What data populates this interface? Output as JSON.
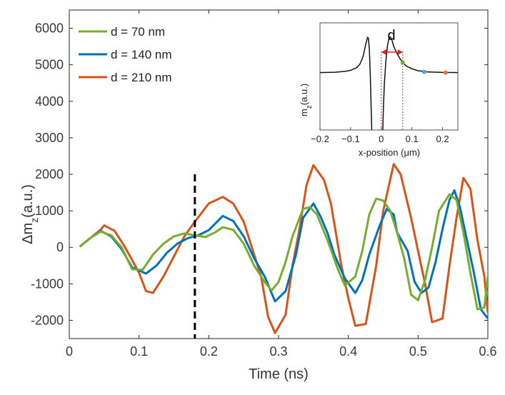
{
  "chart_data": {
    "type": "line",
    "xlabel": "Time (ns)",
    "ylabel": {
      "base": "Δm",
      "sub": "z",
      "unit": "(a.u.)"
    },
    "xlim": [
      0,
      0.6
    ],
    "ylim": [
      -2500,
      6500
    ],
    "xticks": [
      0,
      0.1,
      0.2,
      0.3,
      0.4,
      0.5,
      0.6
    ],
    "xtick_labels": [
      "0",
      "0.1",
      "0.2",
      "0.3",
      "0.4",
      "0.5",
      "0.6"
    ],
    "yticks": [
      -2000,
      -1000,
      0,
      1000,
      2000,
      3000,
      4000,
      5000,
      6000
    ],
    "ytick_labels": [
      "-2000",
      "-1000",
      "0",
      "1000",
      "2000",
      "3000",
      "4000",
      "5000",
      "6000"
    ],
    "vline": {
      "x": 0.18,
      "y_from": -2500,
      "y_to": 2000,
      "style": "dashed"
    },
    "legend_position": "top-left",
    "series": [
      {
        "name": "d = 70 nm",
        "color": "#77ac30",
        "points": [
          [
            0.015,
            20
          ],
          [
            0.03,
            250
          ],
          [
            0.045,
            430
          ],
          [
            0.06,
            330
          ],
          [
            0.075,
            0
          ],
          [
            0.09,
            -600
          ],
          [
            0.105,
            -620
          ],
          [
            0.12,
            -200
          ],
          [
            0.135,
            100
          ],
          [
            0.15,
            300
          ],
          [
            0.165,
            380
          ],
          [
            0.18,
            330
          ],
          [
            0.195,
            280
          ],
          [
            0.21,
            420
          ],
          [
            0.22,
            550
          ],
          [
            0.235,
            480
          ],
          [
            0.25,
            100
          ],
          [
            0.265,
            -500
          ],
          [
            0.28,
            -950
          ],
          [
            0.29,
            -1180
          ],
          [
            0.3,
            -950
          ],
          [
            0.31,
            -400
          ],
          [
            0.32,
            300
          ],
          [
            0.335,
            1050
          ],
          [
            0.345,
            1100
          ],
          [
            0.355,
            900
          ],
          [
            0.37,
            200
          ],
          [
            0.385,
            -600
          ],
          [
            0.395,
            -1050
          ],
          [
            0.41,
            -800
          ],
          [
            0.42,
            -100
          ],
          [
            0.43,
            900
          ],
          [
            0.44,
            1330
          ],
          [
            0.45,
            1280
          ],
          [
            0.46,
            1000
          ],
          [
            0.47,
            400
          ],
          [
            0.48,
            -300
          ],
          [
            0.49,
            -1300
          ],
          [
            0.5,
            -1450
          ],
          [
            0.51,
            -900
          ],
          [
            0.52,
            0
          ],
          [
            0.53,
            1000
          ],
          [
            0.545,
            1450
          ],
          [
            0.555,
            1300
          ],
          [
            0.565,
            400
          ],
          [
            0.575,
            -700
          ],
          [
            0.585,
            -1700
          ],
          [
            0.595,
            -1650
          ],
          [
            0.6,
            -800
          ]
        ]
      },
      {
        "name": "d = 140 nm",
        "color": "#0072bd",
        "points": [
          [
            0.015,
            20
          ],
          [
            0.03,
            250
          ],
          [
            0.045,
            450
          ],
          [
            0.06,
            300
          ],
          [
            0.075,
            -50
          ],
          [
            0.09,
            -550
          ],
          [
            0.11,
            -720
          ],
          [
            0.125,
            -500
          ],
          [
            0.14,
            -150
          ],
          [
            0.155,
            100
          ],
          [
            0.17,
            250
          ],
          [
            0.185,
            330
          ],
          [
            0.2,
            470
          ],
          [
            0.22,
            860
          ],
          [
            0.235,
            720
          ],
          [
            0.25,
            300
          ],
          [
            0.265,
            -300
          ],
          [
            0.28,
            -800
          ],
          [
            0.295,
            -1480
          ],
          [
            0.31,
            -1200
          ],
          [
            0.325,
            -200
          ],
          [
            0.335,
            800
          ],
          [
            0.35,
            1200
          ],
          [
            0.36,
            850
          ],
          [
            0.37,
            400
          ],
          [
            0.38,
            -200
          ],
          [
            0.395,
            -850
          ],
          [
            0.41,
            -1250
          ],
          [
            0.42,
            -900
          ],
          [
            0.43,
            -200
          ],
          [
            0.445,
            600
          ],
          [
            0.455,
            1050
          ],
          [
            0.465,
            900
          ],
          [
            0.47,
            400
          ],
          [
            0.485,
            -100
          ],
          [
            0.495,
            -950
          ],
          [
            0.505,
            -1250
          ],
          [
            0.515,
            -1100
          ],
          [
            0.525,
            -400
          ],
          [
            0.535,
            500
          ],
          [
            0.545,
            1300
          ],
          [
            0.552,
            1560
          ],
          [
            0.56,
            1100
          ],
          [
            0.57,
            200
          ],
          [
            0.58,
            -700
          ],
          [
            0.59,
            -1700
          ],
          [
            0.6,
            -1950
          ]
        ]
      },
      {
        "name": "d = 210 nm",
        "color": "#d95319",
        "points": [
          [
            0.015,
            20
          ],
          [
            0.03,
            250
          ],
          [
            0.045,
            480
          ],
          [
            0.05,
            600
          ],
          [
            0.065,
            450
          ],
          [
            0.08,
            0
          ],
          [
            0.1,
            -700
          ],
          [
            0.11,
            -1200
          ],
          [
            0.12,
            -1250
          ],
          [
            0.135,
            -800
          ],
          [
            0.15,
            -250
          ],
          [
            0.165,
            300
          ],
          [
            0.18,
            700
          ],
          [
            0.2,
            1200
          ],
          [
            0.22,
            1380
          ],
          [
            0.235,
            1200
          ],
          [
            0.25,
            700
          ],
          [
            0.265,
            -200
          ],
          [
            0.275,
            -800
          ],
          [
            0.285,
            -1900
          ],
          [
            0.295,
            -2350
          ],
          [
            0.31,
            -1850
          ],
          [
            0.32,
            -500
          ],
          [
            0.33,
            500
          ],
          [
            0.34,
            1700
          ],
          [
            0.35,
            2250
          ],
          [
            0.365,
            1850
          ],
          [
            0.375,
            1200
          ],
          [
            0.39,
            -500
          ],
          [
            0.4,
            -1400
          ],
          [
            0.41,
            -2150
          ],
          [
            0.425,
            -2100
          ],
          [
            0.44,
            -500
          ],
          [
            0.45,
            1000
          ],
          [
            0.465,
            2280
          ],
          [
            0.475,
            2000
          ],
          [
            0.49,
            800
          ],
          [
            0.5,
            -100
          ],
          [
            0.51,
            -1000
          ],
          [
            0.52,
            -2050
          ],
          [
            0.535,
            -1950
          ],
          [
            0.545,
            -500
          ],
          [
            0.555,
            800
          ],
          [
            0.565,
            1900
          ],
          [
            0.575,
            1600
          ],
          [
            0.585,
            200
          ],
          [
            0.595,
            -800
          ],
          [
            0.6,
            -1800
          ]
        ]
      }
    ],
    "inset": {
      "xlabel": "x-position (μm)",
      "ylabel": {
        "base": "m",
        "sub": "z",
        "unit": "(a.u.)"
      },
      "xlim": [
        -0.2,
        0.25
      ],
      "xticks": [
        -0.2,
        -0.1,
        0,
        0.1,
        0.2
      ],
      "xtick_labels": [
        "−0.2",
        "−0.1",
        "0",
        "0.1",
        "0.2"
      ],
      "ylim": [
        -1.5,
        1.3
      ],
      "annotation": "d",
      "profile": [
        [
          -0.2,
          0
        ],
        [
          -0.15,
          0.01
        ],
        [
          -0.12,
          0.03
        ],
        [
          -0.1,
          0.06
        ],
        [
          -0.08,
          0.13
        ],
        [
          -0.07,
          0.22
        ],
        [
          -0.06,
          0.4
        ],
        [
          -0.055,
          0.58
        ],
        [
          -0.05,
          0.76
        ],
        [
          -0.045,
          0.92
        ],
        [
          -0.042,
          0.9
        ],
        [
          -0.039,
          0.6
        ],
        [
          -0.036,
          0.0
        ],
        [
          -0.033,
          -0.9
        ],
        [
          -0.031,
          -1.5
        ]
      ],
      "profile2": [
        [
          0.005,
          -1.5
        ],
        [
          0.007,
          -0.9
        ],
        [
          0.01,
          -0.3
        ],
        [
          0.015,
          0.3
        ],
        [
          0.02,
          0.7
        ],
        [
          0.025,
          0.9
        ],
        [
          0.03,
          0.93
        ],
        [
          0.035,
          0.85
        ],
        [
          0.04,
          0.7
        ],
        [
          0.05,
          0.52
        ],
        [
          0.06,
          0.38
        ],
        [
          0.07,
          0.27
        ],
        [
          0.08,
          0.18
        ],
        [
          0.1,
          0.1
        ],
        [
          0.12,
          0.05
        ],
        [
          0.15,
          0.02
        ],
        [
          0.2,
          0.005
        ],
        [
          0.25,
          0
        ]
      ],
      "bracket": [
        0,
        0.07
      ],
      "markers": [
        {
          "x": 0.07,
          "y": 0.26,
          "color": "#77ac30"
        },
        {
          "x": 0.14,
          "y": 0.02,
          "color": "#4d9ee6"
        },
        {
          "x": 0.21,
          "y": 0.0,
          "color": "#e8762b"
        }
      ]
    }
  }
}
